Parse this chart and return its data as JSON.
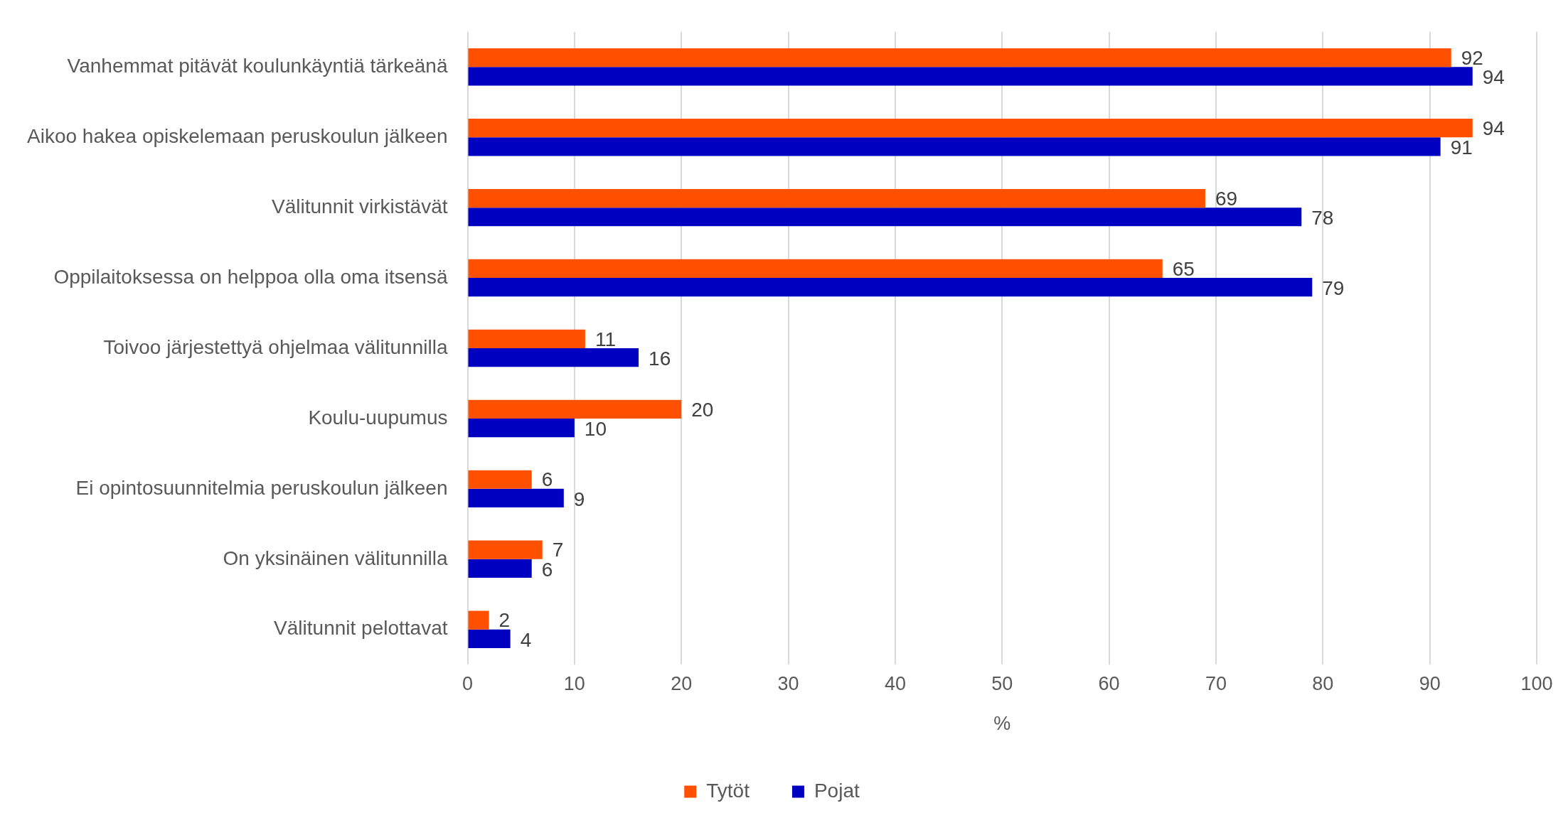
{
  "chart_data": {
    "type": "bar",
    "orientation": "horizontal",
    "xlabel": "%",
    "categories": [
      "Vanhemmat pitävät koulunkäyntiä tärkeänä",
      "Aikoo hakea opiskelemaan peruskoulun jälkeen",
      "Välitunnit virkistävät",
      "Oppilaitoksessa on helppoa olla oma itsensä",
      "Toivoo järjestettyä ohjelmaa välitunnilla",
      "Koulu-uupumus",
      "Ei opintosuunnitelmia peruskoulun jälkeen",
      "On yksinäinen välitunnilla",
      "Välitunnit pelottavat"
    ],
    "series": [
      {
        "name": "Tytöt",
        "color": "#ff5000",
        "values": [
          92,
          94,
          69,
          65,
          11,
          20,
          6,
          7,
          2
        ]
      },
      {
        "name": "Pojat",
        "color": "#0000c0",
        "values": [
          94,
          91,
          78,
          79,
          16,
          10,
          9,
          6,
          4
        ]
      }
    ],
    "xlim": [
      0,
      100
    ],
    "xticks": [
      0,
      10,
      20,
      30,
      40,
      50,
      60,
      70,
      80,
      90,
      100
    ],
    "grid": "x",
    "legend": "bottom",
    "data_labels": true
  }
}
